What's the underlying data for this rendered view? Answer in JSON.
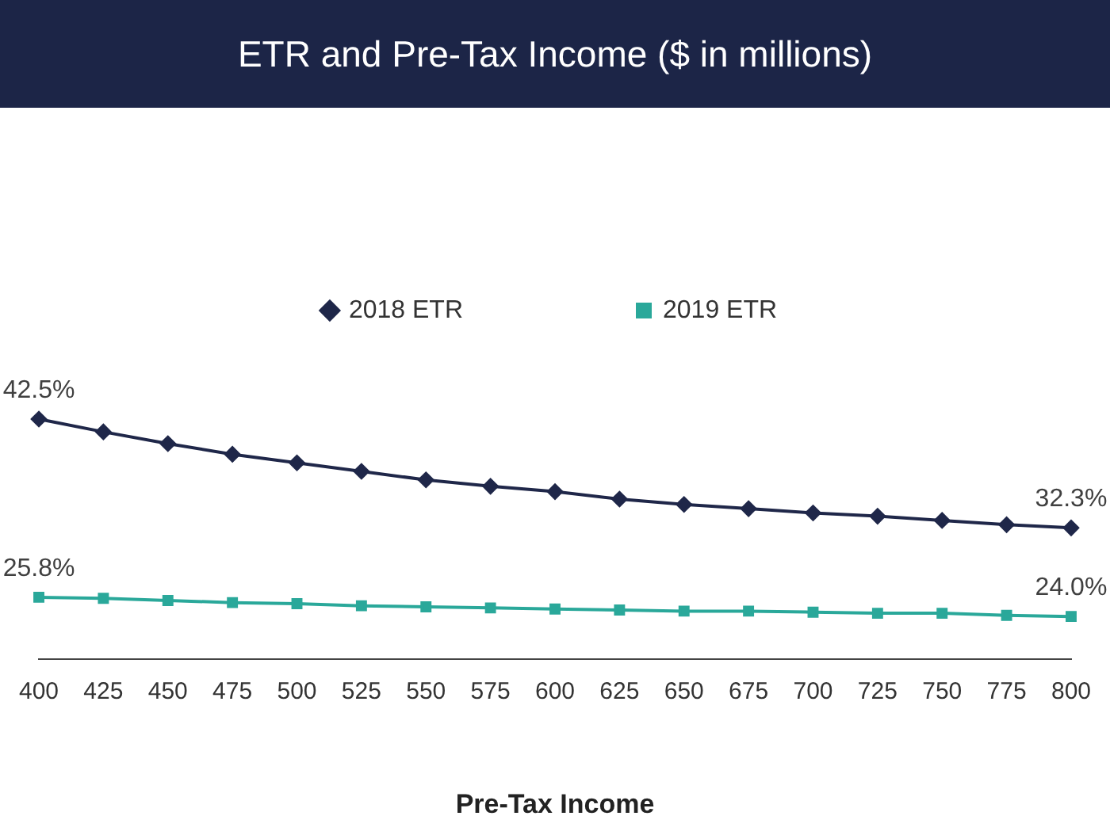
{
  "chart_data": {
    "type": "line",
    "title": "ETR and Pre-Tax Income ($ in millions)",
    "xlabel": "Pre-Tax Income",
    "categories": [
      "400",
      "425",
      "450",
      "475",
      "500",
      "525",
      "550",
      "575",
      "600",
      "625",
      "650",
      "675",
      "700",
      "725",
      "750",
      "775",
      "800"
    ],
    "series": [
      {
        "name": "2018 ETR",
        "color": "#1f2749",
        "marker": "diamond",
        "values": [
          42.5,
          41.3,
          40.2,
          39.2,
          38.4,
          37.6,
          36.8,
          36.2,
          35.7,
          35.0,
          34.5,
          34.1,
          33.7,
          33.4,
          33.0,
          32.6,
          32.3
        ],
        "value_labels": [
          "42.5%",
          null,
          null,
          null,
          null,
          null,
          null,
          null,
          null,
          null,
          null,
          null,
          null,
          null,
          null,
          null,
          "32.3%"
        ]
      },
      {
        "name": "2019 ETR",
        "color": "#2aa89a",
        "marker": "square",
        "values": [
          25.8,
          25.7,
          25.5,
          25.3,
          25.2,
          25.0,
          24.9,
          24.8,
          24.7,
          24.6,
          24.5,
          24.5,
          24.4,
          24.3,
          24.3,
          24.1,
          24.0
        ],
        "value_labels": [
          "25.8%",
          null,
          null,
          null,
          null,
          null,
          null,
          null,
          null,
          null,
          null,
          null,
          null,
          null,
          null,
          null,
          "24.0%"
        ]
      }
    ],
    "legend": "top",
    "tick_labels": "x"
  }
}
